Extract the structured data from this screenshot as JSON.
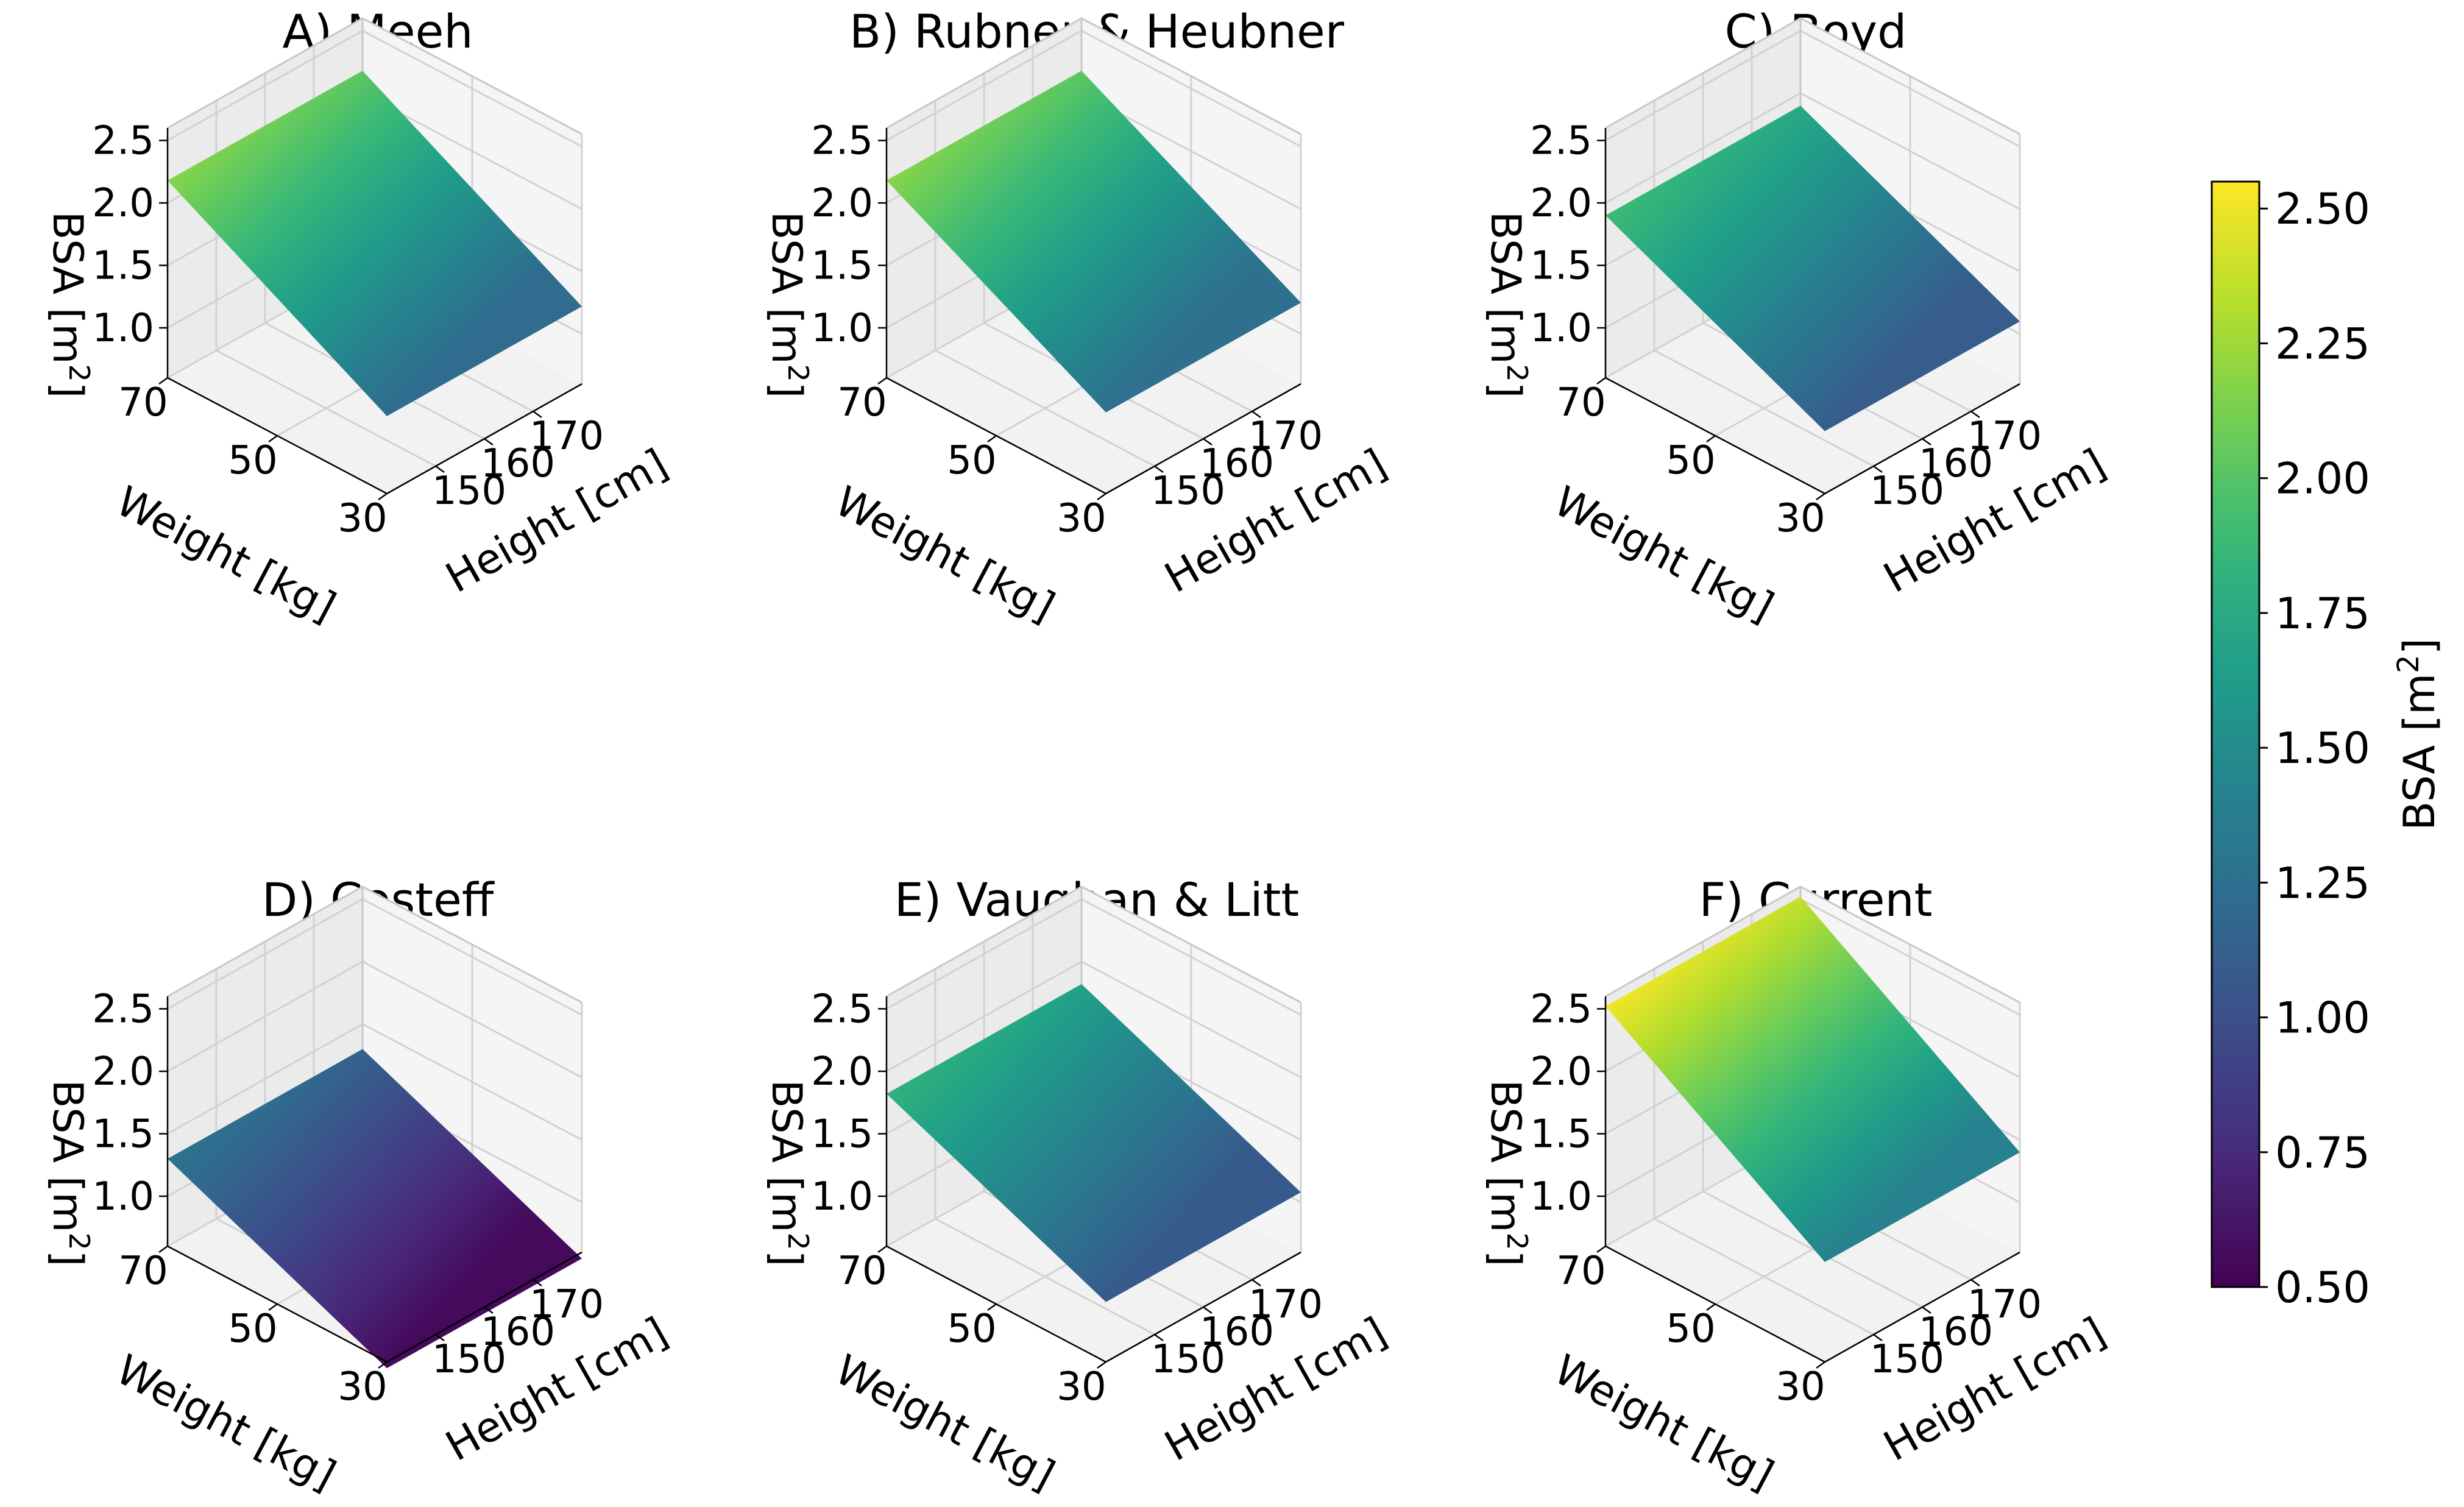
{
  "chart_data": {
    "type": "surface3d",
    "figure_title": "",
    "colormap": "viridis",
    "colorbar": {
      "label": "BSA [m",
      "label_sup": "2",
      "label_end": "]",
      "range": [
        0.5,
        2.55
      ],
      "ticks": [
        "0.50",
        "0.75",
        "1.00",
        "1.25",
        "1.50",
        "1.75",
        "2.00",
        "2.25",
        "2.50"
      ]
    },
    "axes": {
      "weight": {
        "label": "Weight [kg]",
        "range": [
          30,
          70
        ],
        "ticks": [
          "30",
          "50",
          "70"
        ]
      },
      "height": {
        "label": "Height [cm]",
        "range": [
          140,
          180
        ],
        "ticks": [
          "150",
          "160",
          "170"
        ]
      },
      "bsa": {
        "label": "BSA [m",
        "label_sup": "2",
        "label_end": "]",
        "range": [
          0.6,
          2.6
        ],
        "ticks": [
          "1.0",
          "1.5",
          "2.0",
          "2.5"
        ]
      }
    },
    "panels": [
      {
        "title": "A) Meeh",
        "corner_bsa": {
          "w70_h140": 2.18,
          "w70_h180": 2.18,
          "w30_h140": 1.22,
          "w30_h180": 1.22
        }
      },
      {
        "title": "B) Rubner & Heubner",
        "corner_bsa": {
          "w70_h140": 2.18,
          "w70_h180": 2.18,
          "w30_h140": 1.25,
          "w30_h180": 1.25
        }
      },
      {
        "title": "C) Boyd",
        "corner_bsa": {
          "w70_h140": 1.9,
          "w70_h180": 1.9,
          "w30_h140": 1.1,
          "w30_h180": 1.1
        }
      },
      {
        "title": "D) Costeff",
        "corner_bsa": {
          "w70_h140": 1.3,
          "w70_h180": 1.3,
          "w30_h140": 0.55,
          "w30_h180": 0.55
        }
      },
      {
        "title": "E) Vaughan & Litt",
        "corner_bsa": {
          "w70_h140": 1.82,
          "w70_h180": 1.82,
          "w30_h140": 1.08,
          "w30_h180": 1.08
        }
      },
      {
        "title": "F) Current",
        "corner_bsa": {
          "w70_h140": 2.52,
          "w70_h180": 2.52,
          "w30_h140": 1.4,
          "w30_h180": 1.4
        }
      }
    ]
  }
}
